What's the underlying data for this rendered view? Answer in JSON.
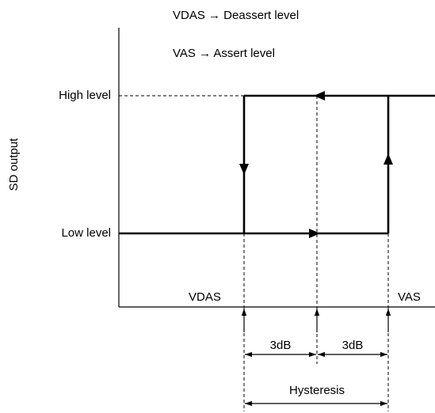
{
  "legend": [
    "VDAS → Deassert level",
    "VAS → Assert level"
  ],
  "y_axis": {
    "label": "SD output",
    "high": "High level",
    "low": "Low level"
  },
  "x_axis": {
    "left": "VDAS",
    "right": "VAS"
  },
  "dimensions": {
    "step_left": "3dB",
    "step_right": "3dB",
    "total": "Hysteresis"
  }
}
